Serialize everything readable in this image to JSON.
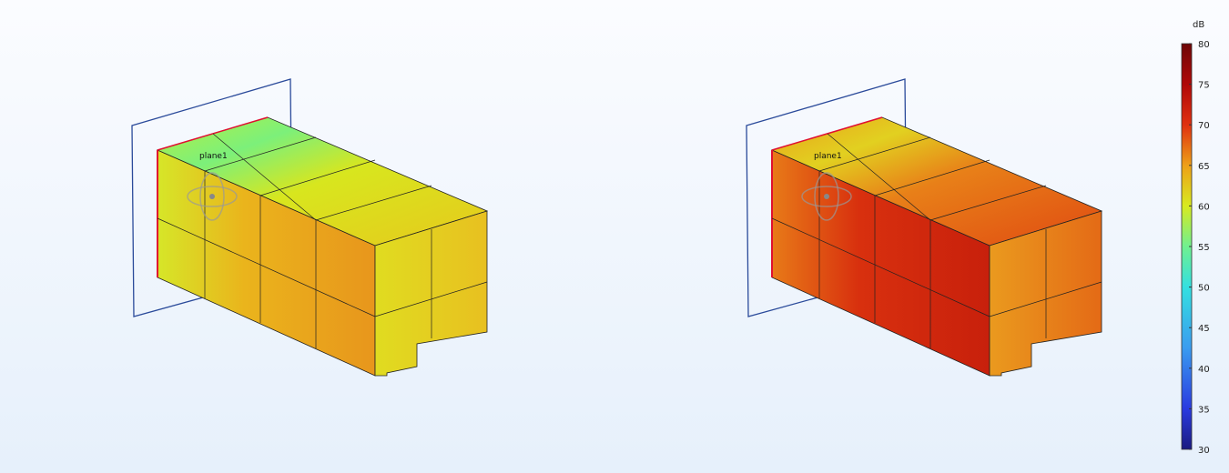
{
  "views": [
    {
      "plane_label": "plane1",
      "top_color": "#d8e61e",
      "top_accent": "#7cf07a",
      "front_color": "#e6a21c",
      "end_color": "#e2d820"
    },
    {
      "plane_label": "plane1",
      "top_color": "#e87818",
      "top_accent": "#e2d020",
      "front_color": "#d0220e",
      "end_color": "#e89020"
    }
  ],
  "colorbar": {
    "unit": "dB",
    "min": 30,
    "max": 80,
    "ticks": [
      "80",
      "75",
      "70",
      "65",
      "60",
      "55",
      "50",
      "45",
      "40",
      "35",
      "30"
    ],
    "colormap": [
      "#1a1a80",
      "#2a3ae0",
      "#3a8cf0",
      "#34d8ec",
      "#70f090",
      "#c8ef30",
      "#e8d81a",
      "#ee8a18",
      "#e03010",
      "#b00808",
      "#6e0606"
    ]
  }
}
